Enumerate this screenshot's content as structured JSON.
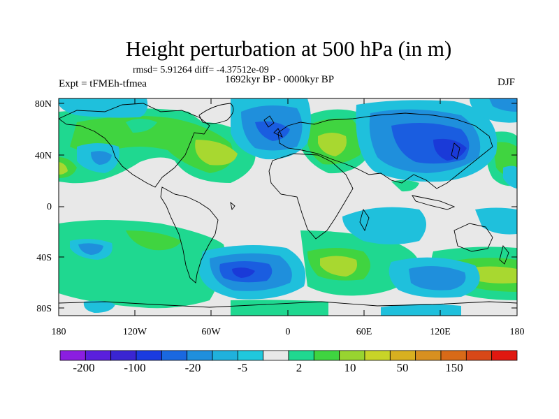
{
  "title": "Height perturbation at 500 hPa (in m)",
  "stats": "rmsd= 5.91264 diff= -4.37512e-09",
  "period": "1692kyr BP - 0000kyr BP",
  "experiment": "Expt = tFMEh-tfmea",
  "season": "DJF",
  "y_ticks": [
    "80N",
    "40N",
    "0",
    "40S",
    "80S"
  ],
  "x_ticks": [
    "180",
    "120W",
    "60W",
    "0",
    "60E",
    "120E",
    "180"
  ],
  "colorbar": {
    "labels": [
      "-200",
      "-100",
      "-20",
      "-5",
      "2",
      "10",
      "50",
      "150"
    ],
    "colors": [
      "#8b1ee0",
      "#5a1fdc",
      "#3a25d2",
      "#1a3be0",
      "#1a68e0",
      "#1f8fdc",
      "#20b1dc",
      "#20c8dc",
      "#e8e8e8",
      "#20d890",
      "#3fd440",
      "#98d430",
      "#c8d428",
      "#d8b020",
      "#d89020",
      "#d86a18",
      "#d84818",
      "#e01810"
    ]
  },
  "colors": {
    "background": "#e8e8e8",
    "neg_light": "#1fc0dc",
    "neg_mid": "#1f8fdc",
    "neg_dark": "#1a5de0",
    "neg_deep": "#1a3ad8",
    "pos_light": "#1fd890",
    "pos_mid": "#40d440",
    "pos_high": "#a8d830"
  },
  "map": {
    "projection": "cylindrical-equidistant",
    "lon_range": [
      -180,
      180
    ],
    "lat_range": [
      -90,
      90
    ],
    "coastlines": true
  }
}
